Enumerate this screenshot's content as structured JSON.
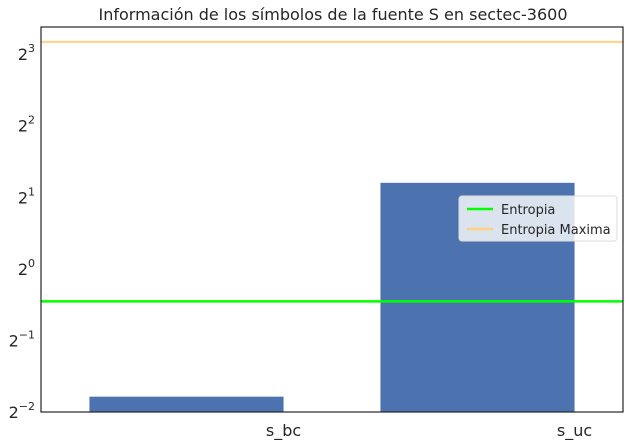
{
  "chart_data": {
    "type": "bar",
    "title": "Información de los símbolos de la fuente S en sectec-3600",
    "categories": [
      "s_bc",
      "s_uc"
    ],
    "values": [
      0.29,
      2.3
    ],
    "yscale": "log2",
    "ylim": [
      0.25,
      10.4
    ],
    "yticks": [
      {
        "base": "2",
        "exp": "−2"
      },
      {
        "base": "2",
        "exp": "−1"
      },
      {
        "base": "2",
        "exp": "0"
      },
      {
        "base": "2",
        "exp": "1"
      },
      {
        "base": "2",
        "exp": "2"
      },
      {
        "base": "2",
        "exp": "3"
      }
    ],
    "ytick_values": [
      0.25,
      0.5,
      1,
      2,
      4,
      8
    ],
    "hlines": [
      {
        "name": "Entropia",
        "value": 0.73,
        "color": "#00ff00"
      },
      {
        "name": "Entropia Maxima",
        "value": 9.0,
        "color": "#ffd27f"
      }
    ],
    "bar_color": "#4c72b0",
    "legend": {
      "placement": "right",
      "entries": [
        "Entropia",
        "Entropia Maxima"
      ]
    },
    "grid": false
  }
}
